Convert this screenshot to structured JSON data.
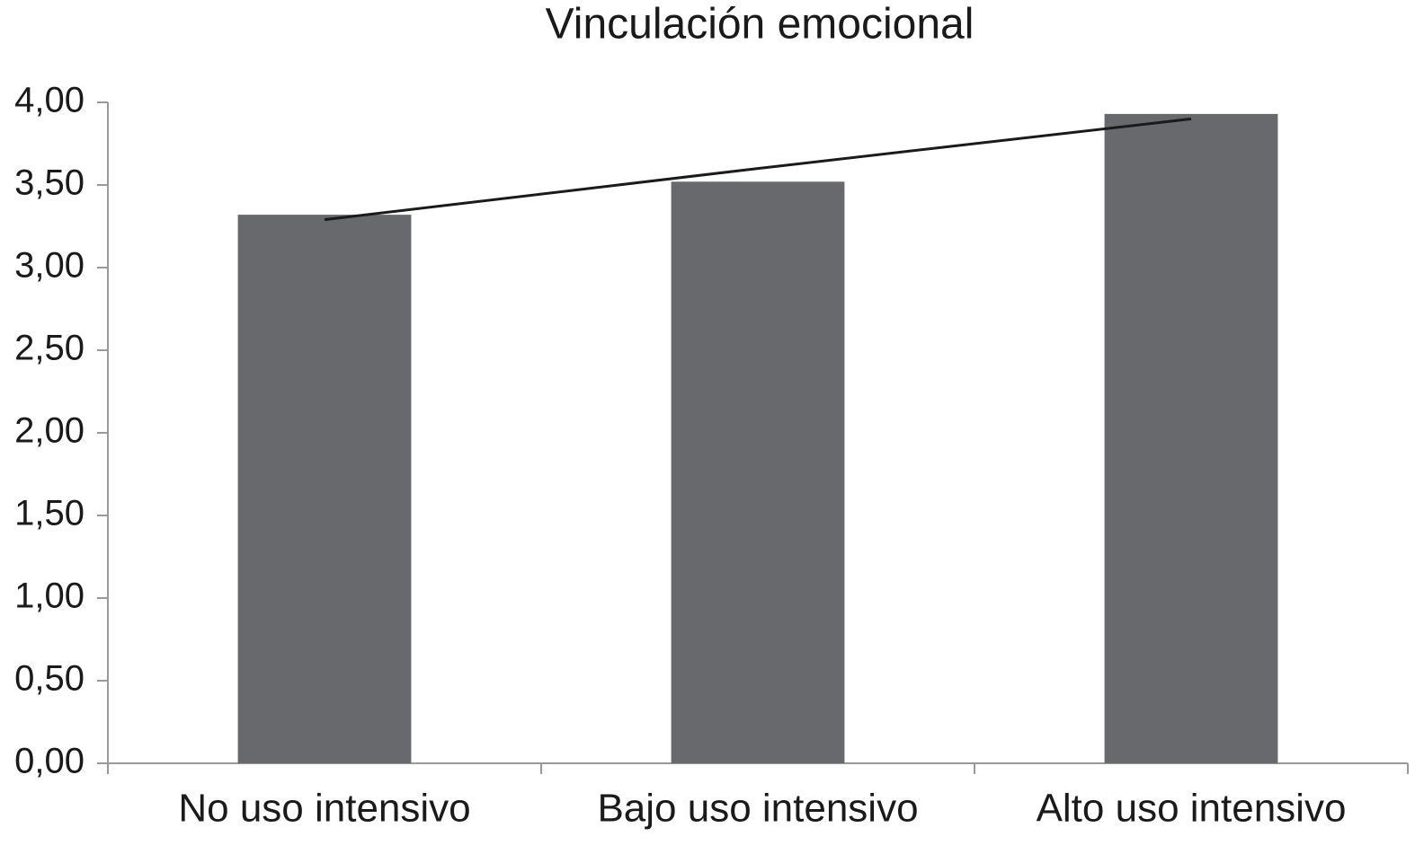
{
  "chart_data": {
    "type": "bar",
    "title": "Vinculación emocional",
    "categories": [
      "No uso intensivo",
      "Bajo uso intensivo",
      "Alto uso intensivo"
    ],
    "values": [
      3.32,
      3.52,
      3.93
    ],
    "color": "#68696d",
    "trendline": {
      "values": [
        3.29,
        3.6,
        3.9
      ],
      "color": "#1a1a1a"
    },
    "ylim": [
      0,
      4
    ],
    "yticks": [
      {
        "value": 0,
        "label": "0,00"
      },
      {
        "value": 0.5,
        "label": "0,50"
      },
      {
        "value": 1,
        "label": "1,00"
      },
      {
        "value": 1.5,
        "label": "1,50"
      },
      {
        "value": 2,
        "label": "2,00"
      },
      {
        "value": 2.5,
        "label": "2,50"
      },
      {
        "value": 3,
        "label": "3,00"
      },
      {
        "value": 3.5,
        "label": "3,50"
      },
      {
        "value": 4,
        "label": "4,00"
      }
    ],
    "grid": false
  }
}
